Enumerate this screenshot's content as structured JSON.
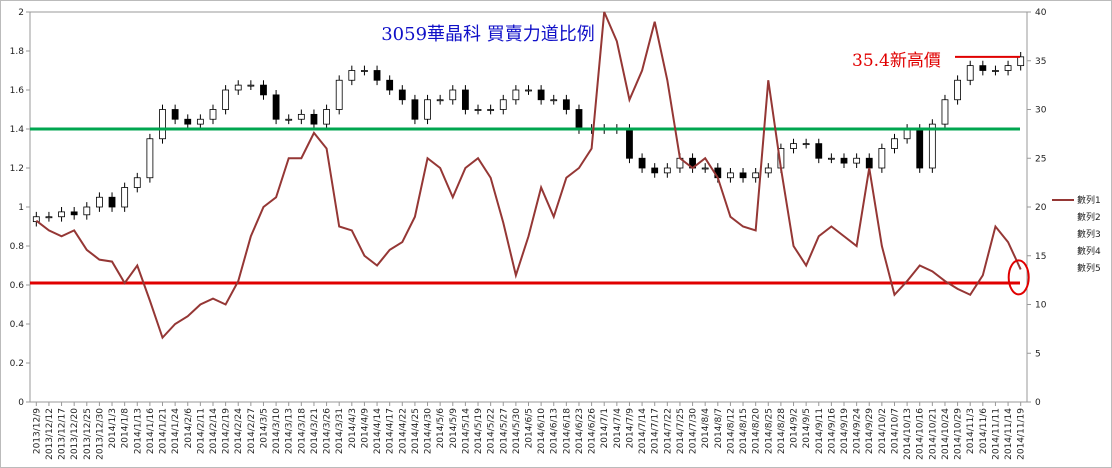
{
  "chart_data": {
    "type": "stock",
    "title": "3059華晶科 買賣力道比例",
    "annotation": "35.4新高價",
    "annotation_value": 35.4,
    "categories": [
      "2013/12/9",
      "2013/12/12",
      "2013/12/17",
      "2013/12/20",
      "2013/12/25",
      "2013/12/30",
      "2014/1/3",
      "2014/1/8",
      "2014/1/13",
      "2014/1/16",
      "2014/1/21",
      "2014/1/24",
      "2014/2/6",
      "2014/2/11",
      "2014/2/14",
      "2014/2/19",
      "2014/2/24",
      "2014/2/27",
      "2014/3/5",
      "2014/3/10",
      "2014/3/13",
      "2014/3/18",
      "2014/3/21",
      "2014/3/26",
      "2014/3/31",
      "2014/4/3",
      "2014/4/9",
      "2014/4/14",
      "2014/4/17",
      "2014/4/22",
      "2014/4/25",
      "2014/4/30",
      "2014/5/6",
      "2014/5/9",
      "2014/5/14",
      "2014/5/19",
      "2014/5/22",
      "2014/5/27",
      "2014/5/30",
      "2014/6/5",
      "2014/6/10",
      "2014/6/13",
      "2014/6/18",
      "2014/6/23",
      "2014/6/26",
      "2014/7/1",
      "2014/7/4",
      "2014/7/9",
      "2014/7/14",
      "2014/7/17",
      "2014/7/22",
      "2014/7/25",
      "2014/7/30",
      "2014/8/4",
      "2014/8/7",
      "2014/8/12",
      "2014/8/15",
      "2014/8/20",
      "2014/8/25",
      "2014/8/28",
      "2014/9/2",
      "2014/9/5",
      "2014/9/11",
      "2014/9/16",
      "2014/9/19",
      "2014/9/24",
      "2014/9/29",
      "2014/10/2",
      "2014/10/7",
      "2014/10/13",
      "2014/10/16",
      "2014/10/21",
      "2014/10/24",
      "2014/10/29",
      "2014/11/3",
      "2014/11/6",
      "2014/11/11",
      "2014/11/14",
      "2014/11/19"
    ],
    "series": [
      {
        "name": "數列1",
        "color": "#953735",
        "values": [
          0.93,
          0.88,
          0.85,
          0.88,
          0.78,
          0.73,
          0.72,
          0.61,
          0.7,
          0.52,
          0.33,
          0.4,
          0.44,
          0.5,
          0.53,
          0.5,
          0.62,
          0.85,
          1.0,
          1.05,
          1.25,
          1.25,
          1.38,
          1.3,
          0.9,
          0.88,
          0.75,
          0.7,
          0.78,
          0.82,
          0.95,
          1.25,
          1.2,
          1.05,
          1.2,
          1.25,
          1.15,
          0.92,
          0.65,
          0.85,
          1.1,
          0.95,
          1.15,
          1.2,
          1.3,
          2.0,
          1.85,
          1.55,
          1.7,
          1.95,
          1.65,
          1.25,
          1.2,
          1.25,
          1.15,
          0.95,
          0.9,
          0.88,
          1.65,
          1.2,
          0.8,
          0.7,
          0.85,
          0.9,
          0.85,
          0.8,
          1.2,
          0.8,
          0.55,
          0.62,
          0.7,
          0.67,
          0.62,
          0.58,
          0.55,
          0.65,
          0.9,
          0.82,
          0.68
        ]
      },
      {
        "name": "數列2",
        "axis": "y2",
        "values": [
          18.5,
          19,
          19,
          19.5,
          19.2,
          20,
          21,
          20,
          22,
          23,
          27,
          30,
          29,
          28.5,
          29,
          30,
          32,
          32.5,
          32.5,
          31.5,
          29,
          29,
          29.5,
          28.5,
          30,
          33,
          34,
          34,
          33,
          32,
          31,
          29,
          31,
          31,
          32,
          30,
          30,
          30,
          31,
          32,
          32,
          31,
          31,
          30,
          28,
          28,
          28,
          28,
          25,
          24,
          23.5,
          24,
          25,
          24,
          24,
          23,
          23.5,
          23,
          23.5,
          24,
          26,
          26.5,
          26.5,
          25,
          25,
          24.5,
          25,
          24,
          26,
          27,
          28,
          24,
          28.5,
          31,
          33,
          34.5,
          34,
          34,
          34.5
        ]
      },
      {
        "name": "數列3",
        "axis": "y2",
        "values": [
          19.5,
          19.5,
          20,
          20,
          20.5,
          21.5,
          21.5,
          22.5,
          23.5,
          27.5,
          30.5,
          30.5,
          29.5,
          29.5,
          30.5,
          32.5,
          33,
          33,
          33,
          32,
          29.5,
          30,
          30,
          30.5,
          33.5,
          34.5,
          34.5,
          34.5,
          33.5,
          32.5,
          31.5,
          31.5,
          31.5,
          32.5,
          32.5,
          30.5,
          30.5,
          31.5,
          32.5,
          32.5,
          32.5,
          31.5,
          31.5,
          30.5,
          28.5,
          28.5,
          28.5,
          28.5,
          25.5,
          24.5,
          24.5,
          25.5,
          25.5,
          24.5,
          24.5,
          24,
          24,
          24,
          24.5,
          26.5,
          27,
          27,
          27,
          25.5,
          25.5,
          25.5,
          25.5,
          26.5,
          27.5,
          28.5,
          28.5,
          29,
          31.5,
          33.5,
          35,
          35,
          34.5,
          35,
          35.9
        ]
      },
      {
        "name": "數列4",
        "axis": "y2",
        "values": [
          18,
          18.5,
          18.5,
          18.7,
          18.7,
          19.5,
          19.5,
          19.5,
          21.5,
          22.5,
          26.5,
          28.5,
          28,
          28,
          28.5,
          29.5,
          31.5,
          32,
          31,
          28.5,
          28.5,
          28.5,
          28,
          28,
          29.5,
          32.5,
          33.5,
          32.5,
          31.5,
          30.5,
          28.5,
          28.5,
          30.5,
          30.5,
          29.5,
          29.5,
          29.5,
          29.5,
          30.5,
          31.5,
          30.5,
          30.5,
          29.5,
          27.5,
          27.5,
          27.5,
          27.5,
          24.5,
          23.5,
          23,
          23,
          23.5,
          23.5,
          23.5,
          22.5,
          22.5,
          22.5,
          22.5,
          23,
          23.5,
          25.5,
          26,
          24.5,
          24.5,
          24,
          24,
          23.5,
          23.5,
          25.5,
          26.5,
          23.5,
          23.5,
          28,
          30.5,
          32.5,
          33.5,
          33.5,
          33.5,
          34
        ]
      },
      {
        "name": "數列5",
        "axis": "y2",
        "values": [
          19,
          19,
          19.5,
          19.2,
          20,
          21,
          20,
          22,
          23,
          27,
          30,
          29,
          28.5,
          29,
          30,
          32,
          32.5,
          32.5,
          31.5,
          29,
          29,
          29.5,
          28.5,
          30,
          33,
          34,
          34,
          33,
          32,
          31,
          29,
          31,
          31,
          32,
          30,
          30,
          30,
          31,
          32,
          32,
          31,
          31,
          30,
          28,
          28,
          28,
          28,
          25,
          24,
          23.5,
          24,
          25,
          24,
          24,
          23,
          23.5,
          23,
          23.5,
          24,
          26,
          26.5,
          26.5,
          25,
          25,
          24.5,
          25,
          24,
          26,
          27,
          28,
          24,
          28.5,
          31,
          33,
          34.5,
          34,
          34,
          34.5,
          35.4
        ]
      }
    ],
    "ylim": [
      0,
      2
    ],
    "yticks": [
      0,
      0.2,
      0.4,
      0.6,
      0.8,
      1,
      1.2,
      1.4,
      1.6,
      1.8,
      2
    ],
    "y2lim": [
      0,
      40
    ],
    "y2ticks": [
      0,
      5,
      10,
      15,
      20,
      25,
      30,
      35,
      40
    ],
    "reference_lines": [
      {
        "value": 1.4,
        "color": "#00a650"
      },
      {
        "value": 0.61,
        "color": "#e00000"
      }
    ],
    "legend": "right"
  }
}
